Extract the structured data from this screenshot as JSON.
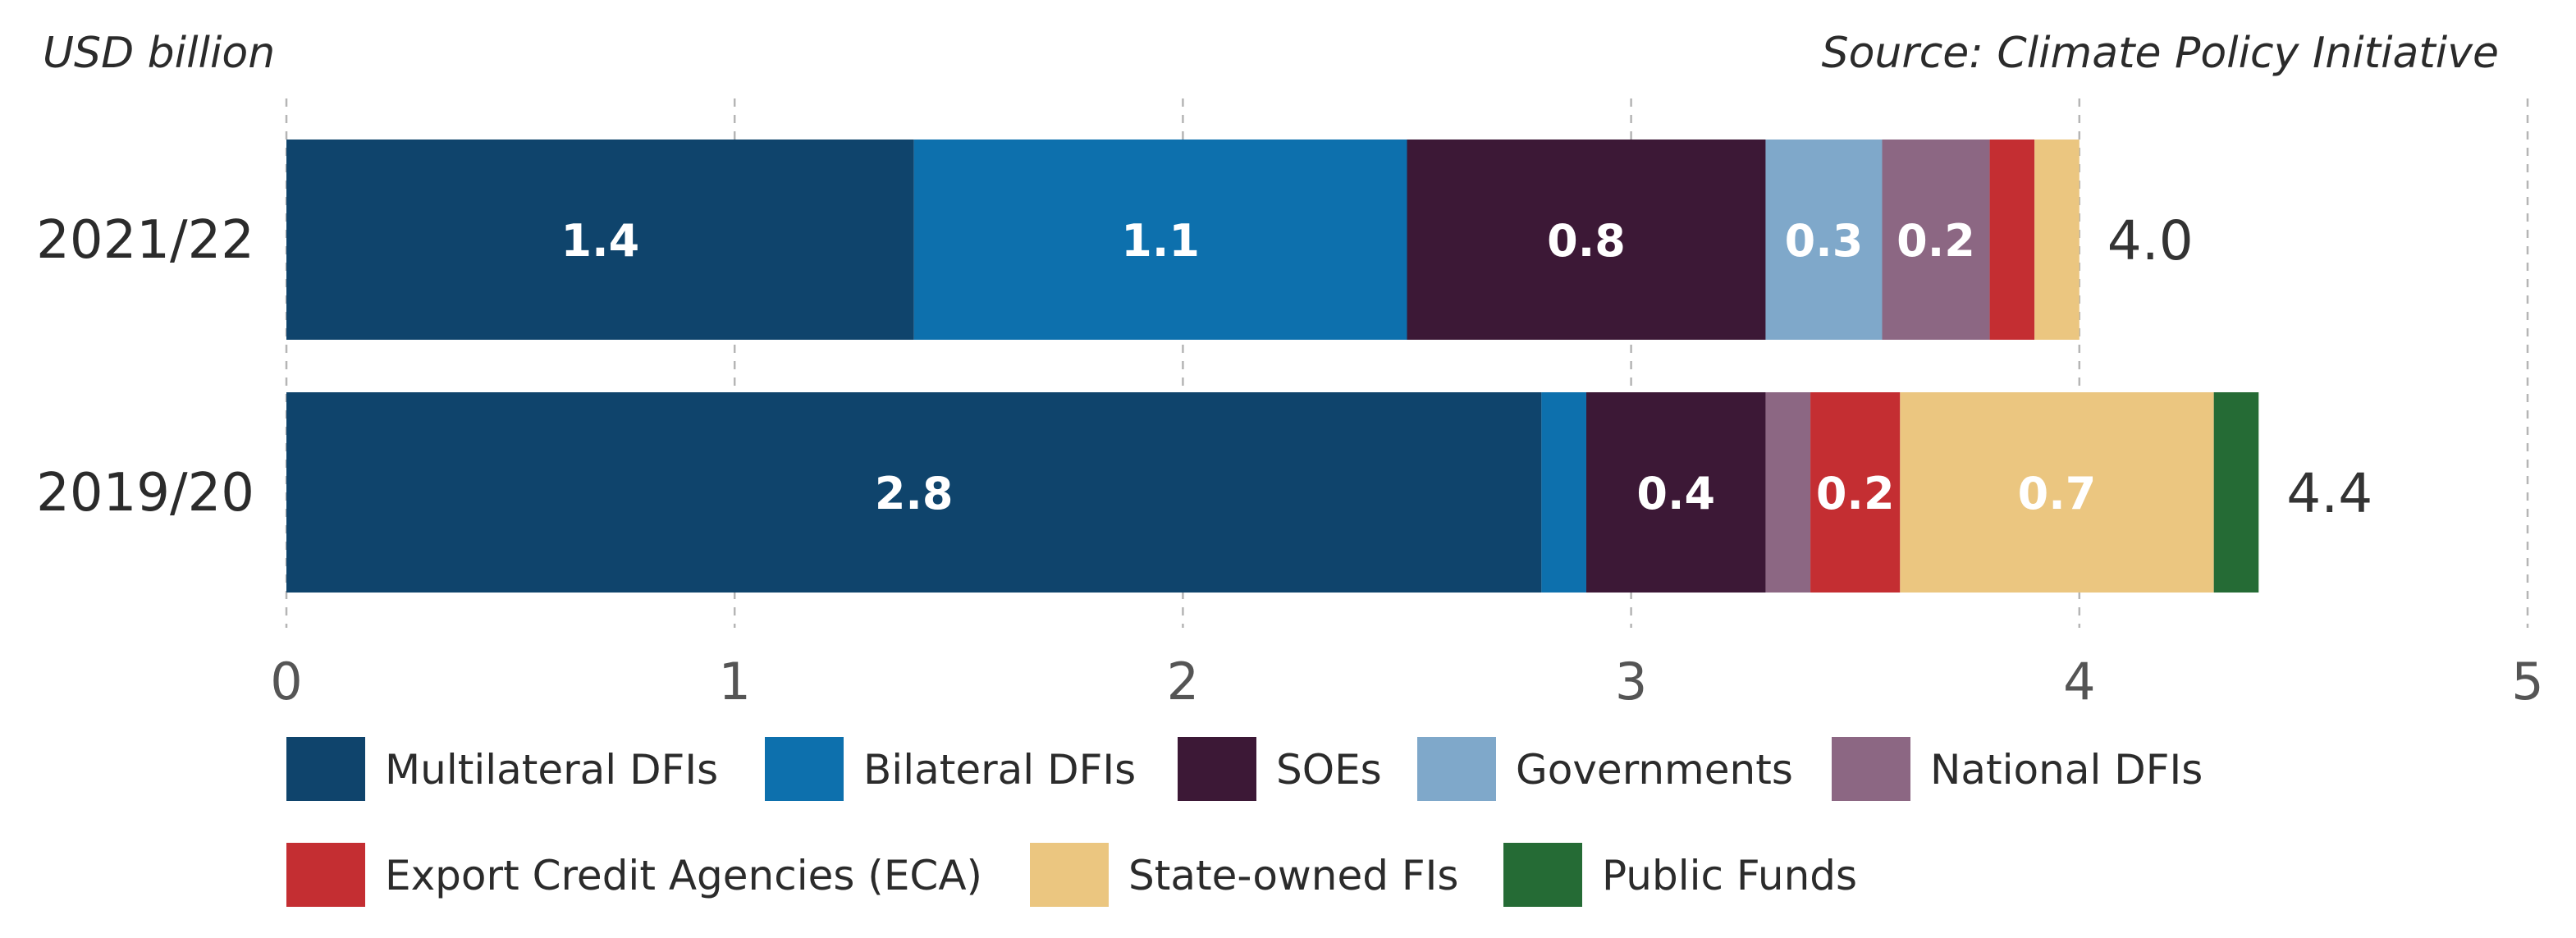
{
  "header": {
    "unit": "USD billion",
    "source": "Source: Climate Policy Initiative"
  },
  "chart_data": {
    "type": "bar",
    "orientation": "horizontal",
    "stacked": true,
    "title": "",
    "xlabel": "",
    "ylabel": "",
    "xlim": [
      0,
      5
    ],
    "x_ticks": [
      "0",
      "1",
      "2",
      "3",
      "4",
      "5"
    ],
    "grid": "vertical dashed",
    "legend_position": "bottom",
    "categories": [
      "2021/22",
      "2019/20"
    ],
    "totals": [
      "4.0",
      "4.4"
    ],
    "series": [
      {
        "name": "Multilateral DFIs",
        "color": "#0f446c",
        "values": [
          1.4,
          2.8
        ],
        "labels": [
          "1.4",
          "2.8"
        ]
      },
      {
        "name": "Bilateral DFIs",
        "color": "#0d70ad",
        "values": [
          1.1,
          0.1
        ],
        "labels": [
          "1.1",
          ""
        ]
      },
      {
        "name": "SOEs",
        "color": "#3c1836",
        "values": [
          0.8,
          0.4
        ],
        "labels": [
          "0.8",
          "0.4"
        ]
      },
      {
        "name": "Governments",
        "color": "#7fa8ca",
        "values": [
          0.26,
          0.0
        ],
        "labels": [
          "0.3",
          ""
        ]
      },
      {
        "name": "National DFIs",
        "color": "#8c6783",
        "values": [
          0.24,
          0.1
        ],
        "labels": [
          "0.2",
          ""
        ]
      },
      {
        "name": "Export Credit Agencies (ECA)",
        "color": "#c42e32",
        "values": [
          0.1,
          0.2
        ],
        "labels": [
          "",
          "0.2"
        ]
      },
      {
        "name": "State-owned FIs",
        "color": "#ebc680",
        "values": [
          0.1,
          0.7
        ],
        "labels": [
          "",
          "0.7"
        ]
      },
      {
        "name": "Public Funds",
        "color": "#256b35",
        "values": [
          0.0,
          0.1
        ],
        "labels": [
          "",
          ""
        ]
      }
    ]
  }
}
